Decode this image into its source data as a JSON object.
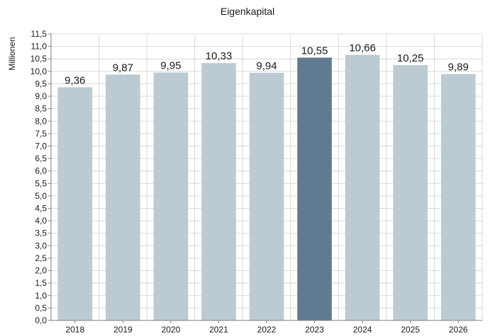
{
  "chart_data": {
    "type": "bar",
    "title": "Eigenkapital",
    "xlabel": "",
    "ylabel": "Millionen",
    "categories": [
      "2018",
      "2019",
      "2020",
      "2021",
      "2022",
      "2023",
      "2024",
      "2025",
      "2026"
    ],
    "values": [
      9.36,
      9.87,
      9.95,
      10.33,
      9.94,
      10.55,
      10.66,
      10.25,
      9.89
    ],
    "value_labels": [
      "9,36",
      "9,87",
      "9,95",
      "10,33",
      "9,94",
      "10,55",
      "10,66",
      "10,25",
      "9,89"
    ],
    "highlight_category": "2023",
    "ylim": [
      0,
      11.5
    ],
    "ytick_step": 0.5,
    "yticks": [
      "0,0",
      "0,5",
      "1,0",
      "1,5",
      "2,0",
      "2,5",
      "3,0",
      "3,5",
      "4,0",
      "4,5",
      "5,0",
      "5,5",
      "6,0",
      "6,5",
      "7,0",
      "7,5",
      "8,0",
      "8,5",
      "9,0",
      "9,5",
      "10,0",
      "10,5",
      "11,0",
      "11,5"
    ],
    "grid": true,
    "legend": "none",
    "colors": {
      "bar": "#bccad2",
      "highlight": "#607b90",
      "grid": "#d9d9d9",
      "axis": "#7f7f7f"
    }
  }
}
